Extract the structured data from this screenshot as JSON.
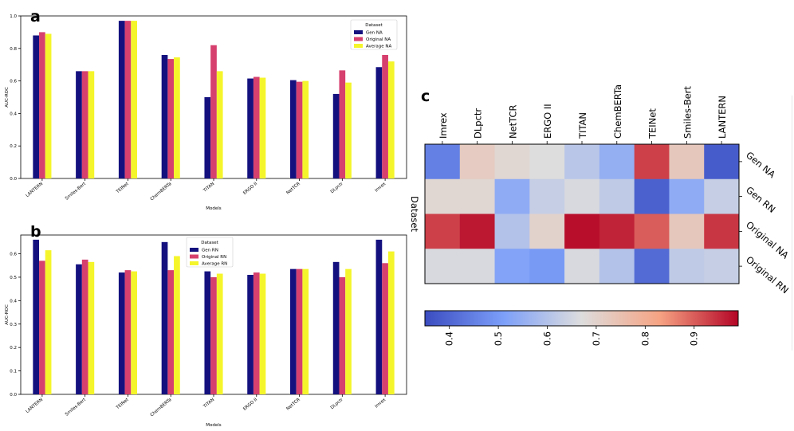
{
  "colors": {
    "gen": "#14117f",
    "original": "#d6406e",
    "average": "#f5f52b",
    "axis": "#000000"
  },
  "panels": {
    "a_label": "a",
    "b_label": "b",
    "c_label": "c"
  },
  "chart_data": [
    {
      "id": "a",
      "type": "bar",
      "title": "",
      "xlabel": "Models",
      "ylabel": "AUC-ROC",
      "ylim": [
        0,
        1.0
      ],
      "yticks": [
        0.0,
        0.2,
        0.4,
        0.6,
        0.8,
        1.0
      ],
      "ytick_labels": [
        "0.0",
        "0.2",
        "0.4",
        "0.6",
        "0.8",
        "1.0"
      ],
      "categories": [
        "LANTERN",
        "Smiles-Bert",
        "TEINet",
        "ChemBERTa",
        "TITAN",
        "ERGO II",
        "NetTCR",
        "DLpctr",
        "Imrex"
      ],
      "legend_title": "Dataset",
      "legend_position": "top-right",
      "series": [
        {
          "name": "Gen NA",
          "color": "#14117f",
          "values": [
            0.88,
            0.66,
            0.97,
            0.76,
            0.5,
            0.615,
            0.605,
            0.52,
            0.685
          ]
        },
        {
          "name": "Original NA",
          "color": "#d6406e",
          "values": [
            0.9,
            0.66,
            0.97,
            0.735,
            0.82,
            0.625,
            0.595,
            0.665,
            0.76
          ]
        },
        {
          "name": "Average NA",
          "color": "#f5f52b",
          "values": [
            0.89,
            0.66,
            0.97,
            0.745,
            0.66,
            0.62,
            0.6,
            0.59,
            0.72
          ]
        }
      ]
    },
    {
      "id": "b",
      "type": "bar",
      "title": "",
      "xlabel": "Models",
      "ylabel": "AUC-ROC",
      "ylim": [
        0,
        0.68
      ],
      "yticks": [
        0.0,
        0.1,
        0.2,
        0.3,
        0.4,
        0.5,
        0.6
      ],
      "ytick_labels": [
        "0.0",
        "0.1",
        "0.2",
        "0.3",
        "0.4",
        "0.5",
        "0.6"
      ],
      "categories": [
        "LANTERN",
        "Smiles-Bert",
        "TEINet",
        "ChemBERTa",
        "TITAN",
        "ERGO II",
        "NetTCR",
        "DLpctr",
        "Imrex"
      ],
      "legend_title": "Dataset",
      "legend_position": "top-center",
      "series": [
        {
          "name": "Gen RN",
          "color": "#14117f",
          "values": [
            0.66,
            0.555,
            0.52,
            0.65,
            0.525,
            0.51,
            0.535,
            0.565,
            0.66
          ]
        },
        {
          "name": "Original RN",
          "color": "#d6406e",
          "values": [
            0.57,
            0.575,
            0.53,
            0.53,
            0.5,
            0.52,
            0.535,
            0.5,
            0.56
          ]
        },
        {
          "name": "Average RN",
          "color": "#f5f52b",
          "values": [
            0.615,
            0.565,
            0.525,
            0.59,
            0.515,
            0.515,
            0.535,
            0.535,
            0.61
          ]
        }
      ]
    },
    {
      "id": "c",
      "type": "heatmap",
      "ylabel": "Dataset",
      "columns": [
        "Imrex",
        "DLpctr",
        "NetTCR",
        "ERGO II",
        "TITAN",
        "ChemBERTa",
        "TEINet",
        "Smiles-Bert",
        "LANTERN"
      ],
      "rows": [
        "Gen NA",
        "Gen RN",
        "Original NA",
        "Original RN"
      ],
      "values": [
        [
          0.45,
          0.72,
          0.69,
          0.67,
          0.61,
          0.55,
          0.93,
          0.73,
          0.38
        ],
        [
          0.69,
          0.69,
          0.54,
          0.63,
          0.66,
          0.62,
          0.39,
          0.54,
          0.63
        ],
        [
          0.93,
          0.97,
          0.6,
          0.7,
          0.98,
          0.96,
          0.9,
          0.73,
          0.94
        ],
        [
          0.66,
          0.66,
          0.52,
          0.5,
          0.66,
          0.6,
          0.41,
          0.62,
          0.63
        ]
      ],
      "colormap": "coolwarm",
      "colorbar": {
        "min": 0.35,
        "max": 0.99,
        "ticks": [
          0.4,
          0.5,
          0.6,
          0.7,
          0.8,
          0.9
        ],
        "tick_labels": [
          "0.4",
          "0.5",
          "0.6",
          "0.7",
          "0.8",
          "0.9"
        ]
      }
    }
  ]
}
